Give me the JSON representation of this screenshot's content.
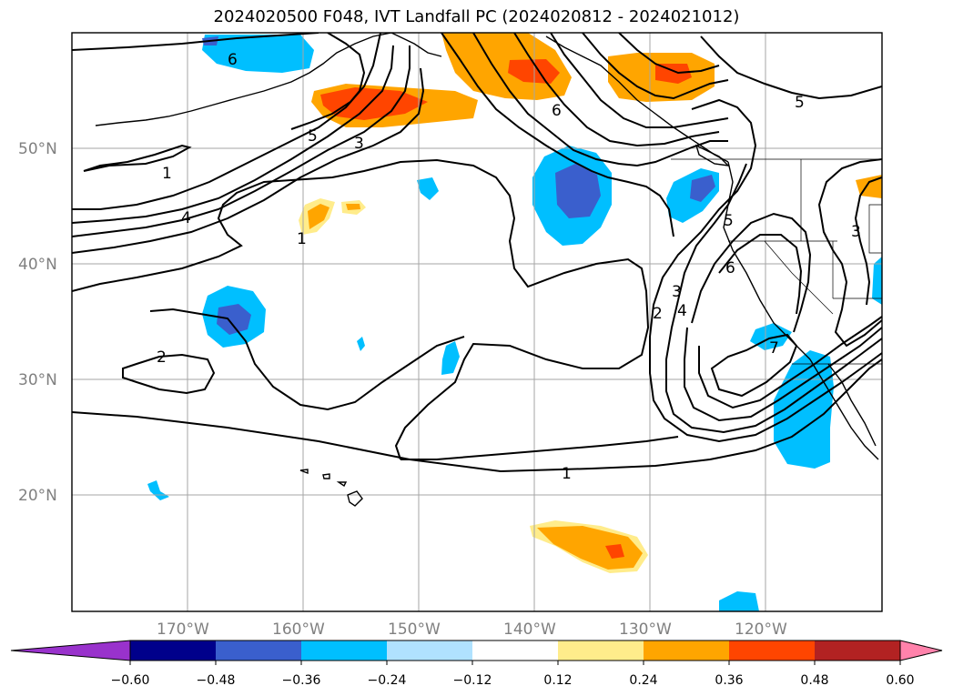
{
  "title": "2024020500 F048, IVT Landfall PC (2024020812 - 2024021012)",
  "lat_labels": [
    "50°N",
    "40°N",
    "30°N",
    "20°N"
  ],
  "lon_labels": [
    "170°W",
    "160°W",
    "150°W",
    "140°W",
    "130°W",
    "120°W"
  ],
  "contour_labels": [
    "6",
    "5",
    "3",
    "1",
    "4",
    "1",
    "2",
    "6",
    "2",
    "3",
    "4",
    "5",
    "6",
    "7",
    "1",
    "5",
    "3"
  ],
  "colorbar": {
    "ticks": [
      "−0.60",
      "−0.48",
      "−0.36",
      "−0.24",
      "−0.12",
      "0.12",
      "0.24",
      "0.36",
      "0.48",
      "0.60"
    ],
    "colors": {
      "under": "#9932cc",
      "bins": [
        "#00008b",
        "#3a5fcd",
        "#00bfff",
        "#b0e2ff",
        "#ffffff",
        "#ffec8b",
        "#ffa500",
        "#ff4500",
        "#b22222"
      ],
      "over": "#ff82ab"
    }
  }
}
